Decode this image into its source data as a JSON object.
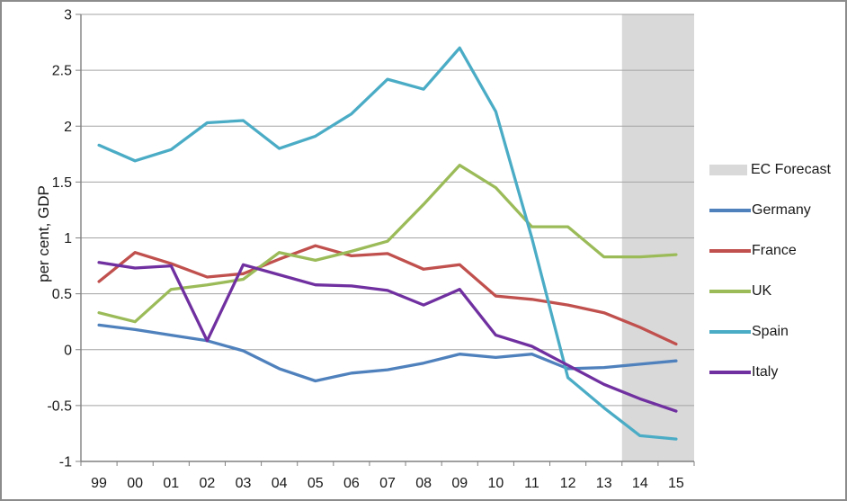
{
  "chart": {
    "y_axis_title": "per cent, GDP",
    "background": "#ffffff",
    "frame_color": "#8c8c8c",
    "gridline_color": "#a3a3a3",
    "axis_color": "#808080",
    "text_color": "#1a1a1a"
  },
  "chart_data": {
    "type": "line",
    "title": "",
    "xlabel": "",
    "ylabel": "per cent, GDP",
    "grid": "horizontal",
    "legend_position": "right",
    "ylim": [
      -1,
      3
    ],
    "y_ticks": [
      3,
      2.5,
      2,
      1.5,
      1,
      0.5,
      0,
      -0.5,
      -1
    ],
    "y_tick_labels": [
      "3",
      "2.5",
      "2",
      "1.5",
      "1",
      "0.5",
      "0",
      "-0.5",
      "-1"
    ],
    "categories": [
      "99",
      "00",
      "01",
      "02",
      "03",
      "04",
      "05",
      "06",
      "07",
      "08",
      "09",
      "10",
      "11",
      "12",
      "13",
      "14",
      "15"
    ],
    "series": [
      {
        "name": "Germany",
        "color": "#4F81BD",
        "values": [
          0.22,
          0.18,
          0.13,
          0.08,
          -0.01,
          -0.17,
          -0.28,
          -0.21,
          -0.18,
          -0.12,
          -0.04,
          -0.07,
          -0.04,
          -0.17,
          -0.16,
          -0.13,
          -0.1
        ]
      },
      {
        "name": "France",
        "color": "#C0504D",
        "values": [
          0.61,
          0.87,
          0.77,
          0.65,
          0.68,
          0.81,
          0.93,
          0.84,
          0.86,
          0.72,
          0.76,
          0.48,
          0.45,
          0.4,
          0.33,
          0.2,
          0.05
        ]
      },
      {
        "name": "UK",
        "color": "#9BBB59",
        "values": [
          0.33,
          0.25,
          0.54,
          0.58,
          0.63,
          0.87,
          0.8,
          0.88,
          0.97,
          1.3,
          1.65,
          1.45,
          1.1,
          1.1,
          0.83,
          0.83,
          0.85
        ]
      },
      {
        "name": "Spain",
        "color": "#4BACC6",
        "values": [
          1.83,
          1.69,
          1.79,
          2.03,
          2.05,
          1.8,
          1.91,
          2.11,
          2.42,
          2.33,
          2.7,
          2.13,
          1.0,
          -0.25,
          -0.52,
          -0.77,
          -0.8
        ]
      },
      {
        "name": "Italy",
        "color": "#7030A0",
        "values": [
          0.78,
          0.73,
          0.75,
          0.08,
          0.76,
          0.67,
          0.58,
          0.57,
          0.53,
          0.4,
          0.54,
          0.13,
          0.03,
          -0.14,
          -0.31,
          -0.44,
          -0.55
        ]
      }
    ],
    "forecast_band": {
      "label": "EC Forecast",
      "color": "#D9D9D9",
      "covers_categories": [
        "14",
        "15"
      ]
    }
  },
  "legend": {
    "items": [
      {
        "label": "EC Forecast",
        "swatch": "rect",
        "color": "#D9D9D9"
      },
      {
        "label": "Germany",
        "swatch": "line",
        "color": "#4F81BD"
      },
      {
        "label": "France",
        "swatch": "line",
        "color": "#C0504D"
      },
      {
        "label": "UK",
        "swatch": "line",
        "color": "#9BBB59"
      },
      {
        "label": "Spain",
        "swatch": "line",
        "color": "#4BACC6"
      },
      {
        "label": "Italy",
        "swatch": "line",
        "color": "#7030A0"
      }
    ]
  }
}
